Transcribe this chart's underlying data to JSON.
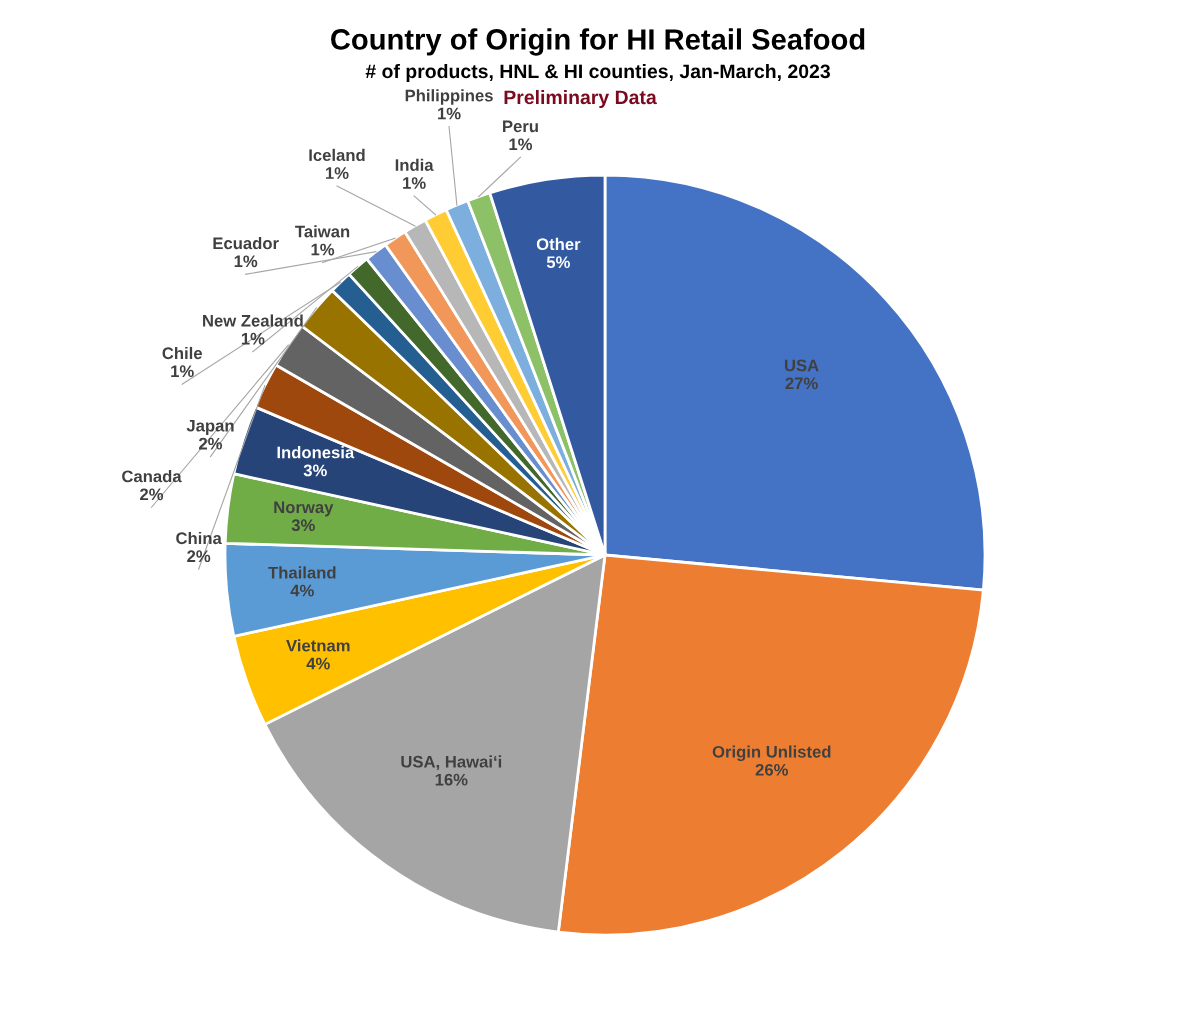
{
  "chart_data": {
    "type": "pie",
    "title": "Country of Origin for HI Retail Seafood",
    "subtitle": "# of products, HNL & HI counties, Jan-March, 2023",
    "annotations": [
      "Preliminary Data"
    ],
    "categories": [
      "USA",
      "Origin Unlisted",
      "USA, Hawai‘i",
      "Vietnam",
      "Thailand",
      "Norway",
      "Indonesia",
      "China",
      "Canada",
      "Japan",
      "Chile",
      "New Zealand",
      "Ecuador",
      "Taiwan",
      "Iceland",
      "India",
      "Philippines",
      "Peru",
      "Other"
    ],
    "values": [
      27,
      26,
      16,
      4,
      4,
      3,
      3,
      2,
      2,
      2,
      1,
      1,
      1,
      1,
      1,
      1,
      1,
      1,
      5
    ],
    "value_labels": [
      "27%",
      "26%",
      "16%",
      "4%",
      "4%",
      "3%",
      "3%",
      "2%",
      "2%",
      "2%",
      "1%",
      "1%",
      "1%",
      "1%",
      "1%",
      "1%",
      "1%",
      "1%",
      "5%"
    ],
    "colors": [
      "#4472c4",
      "#ed7d31",
      "#a5a5a5",
      "#ffc000",
      "#5b9bd5",
      "#70ad47",
      "#264478",
      "#9e480e",
      "#636363",
      "#997300",
      "#255e91",
      "#43682b",
      "#698ed0",
      "#f1975a",
      "#b7b7b7",
      "#ffcd33",
      "#7cafdd",
      "#8cc168",
      "#335aa1"
    ],
    "legend": false
  }
}
